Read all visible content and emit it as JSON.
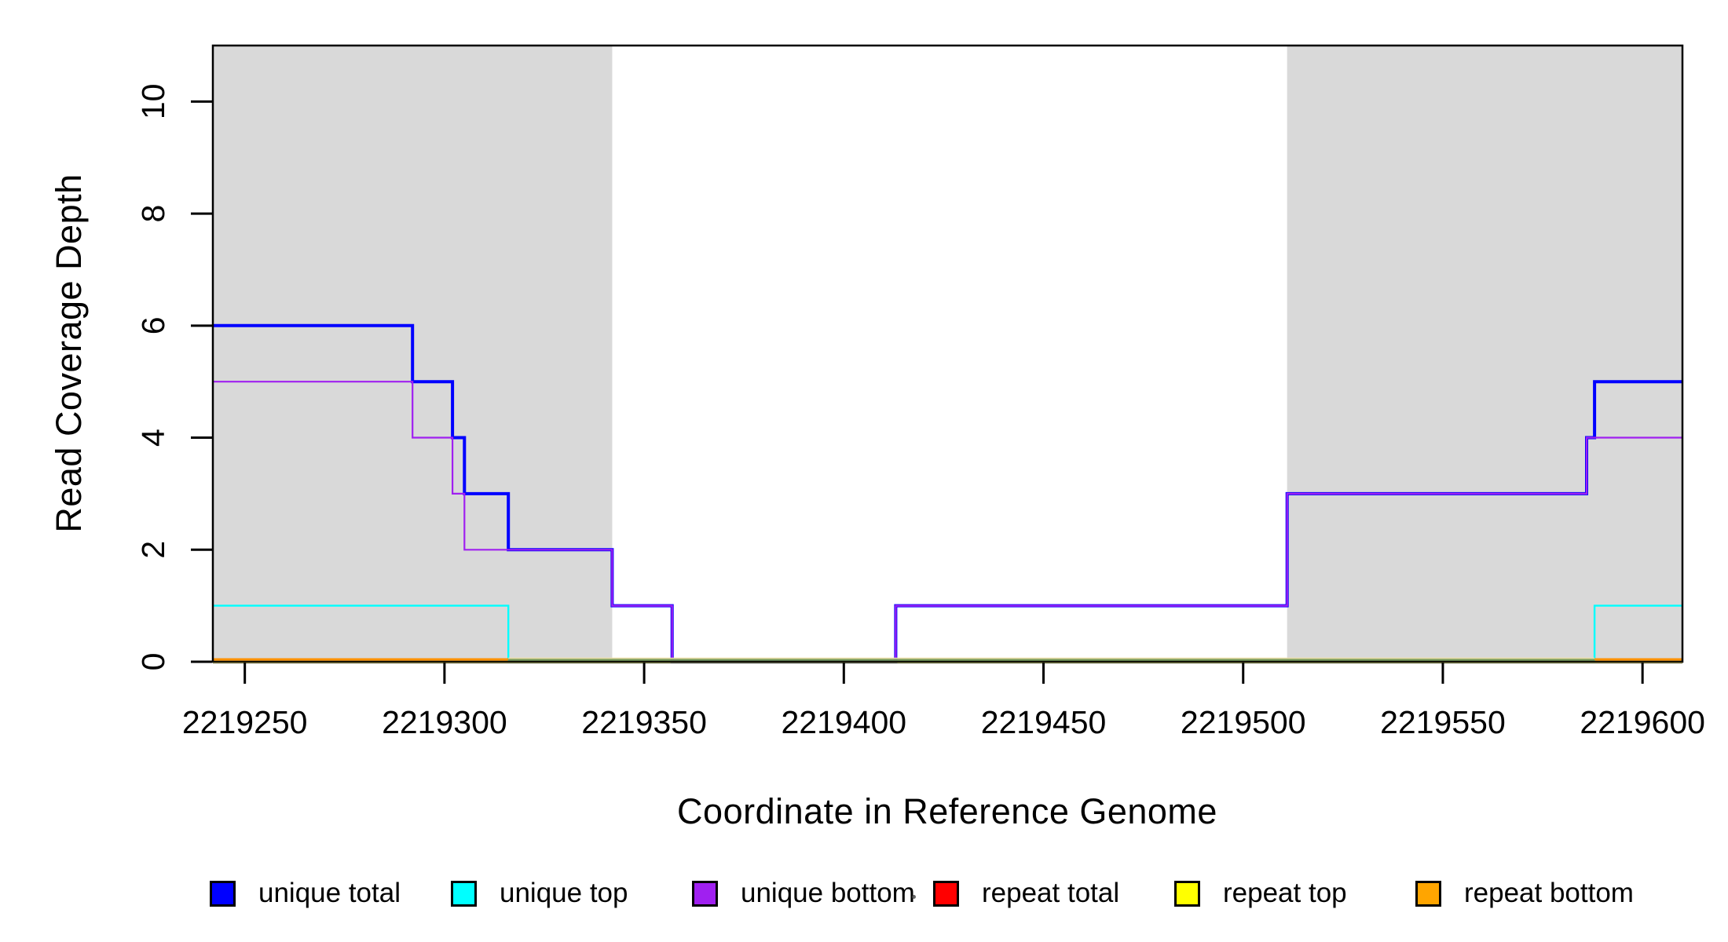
{
  "figure": {
    "background": "#ffffff"
  },
  "chart_data": {
    "type": "line",
    "subtype": "step",
    "title": "",
    "xlabel": "Coordinate in Reference Genome",
    "ylabel": "Read Coverage Depth",
    "xlim": [
      2219242,
      2219610
    ],
    "ylim": [
      0,
      11
    ],
    "x_ticks": [
      2219250,
      2219300,
      2219350,
      2219400,
      2219450,
      2219500,
      2219550,
      2219600
    ],
    "y_ticks": [
      0,
      2,
      4,
      6,
      8,
      10
    ],
    "grid": false,
    "legend_position": "bottom",
    "shaded_regions": [
      {
        "x0": 2219242,
        "x1": 2219342,
        "color": "#d9d9d9"
      },
      {
        "x0": 2219511,
        "x1": 2219610,
        "color": "#d9d9d9"
      }
    ],
    "series": [
      {
        "name": "repeat total",
        "color": "#ff0000",
        "line_width": 2,
        "end": 2219610,
        "steps": [
          [
            2219242,
            0
          ]
        ]
      },
      {
        "name": "repeat top",
        "color": "#ffff00",
        "line_width": 2,
        "end": 2219610,
        "steps": [
          [
            2219242,
            0
          ]
        ]
      },
      {
        "name": "repeat bottom",
        "color": "#ffa500",
        "line_width": 2.6,
        "end": 2219610,
        "steps": [
          [
            2219242,
            0
          ]
        ]
      },
      {
        "name": "unique total",
        "color": "#0000ff",
        "line_width": 4,
        "end": 2219610,
        "steps": [
          [
            2219242,
            6
          ],
          [
            2219292,
            5
          ],
          [
            2219302,
            4
          ],
          [
            2219305,
            3
          ],
          [
            2219316,
            2
          ],
          [
            2219342,
            1
          ],
          [
            2219357,
            0
          ],
          [
            2219413,
            1
          ],
          [
            2219511,
            3
          ],
          [
            2219586,
            4
          ],
          [
            2219588,
            5
          ]
        ]
      },
      {
        "name": "unique bottom",
        "color": "#a020f0",
        "line_width": 2.2,
        "end": 2219610,
        "steps": [
          [
            2219242,
            5
          ],
          [
            2219292,
            4
          ],
          [
            2219302,
            3
          ],
          [
            2219305,
            2
          ],
          [
            2219342,
            1
          ],
          [
            2219357,
            0
          ],
          [
            2219413,
            1
          ],
          [
            2219511,
            3
          ],
          [
            2219586,
            4
          ]
        ]
      },
      {
        "name": "unique top",
        "color": "#00ffff",
        "line_width": 2.4,
        "end": 2219610,
        "steps": [
          [
            2219242,
            1
          ],
          [
            2219316,
            0
          ],
          [
            2219588,
            1
          ]
        ]
      }
    ],
    "baseline_segments": [
      {
        "x0": 2219242,
        "x1": 2219316,
        "color": "#ff9100",
        "width": 3,
        "dy": -3
      },
      {
        "x0": 2219316,
        "x1": 2219588,
        "color": "#e9dda6",
        "width": 1.6,
        "dy": -4.4
      },
      {
        "x0": 2219316,
        "x1": 2219588,
        "color": "#7e9e5e",
        "width": 2.6,
        "dy": -2.4
      },
      {
        "x0": 2219588,
        "x1": 2219610,
        "color": "#ff9100",
        "width": 3,
        "dy": -3
      }
    ],
    "axis_blend_color": "#55511f",
    "box_color": "#000000"
  },
  "legend": {
    "items": [
      {
        "label": "unique total",
        "color": "#0000ff"
      },
      {
        "label": "unique top",
        "color": "#00ffff"
      },
      {
        "label": "unique bottom",
        "color": "#a020f0"
      },
      {
        "label": "repeat total",
        "color": "#ff0000"
      },
      {
        "label": "repeat top",
        "color": "#ffff00"
      },
      {
        "label": "repeat bottom",
        "color": "#ffa500"
      }
    ]
  }
}
